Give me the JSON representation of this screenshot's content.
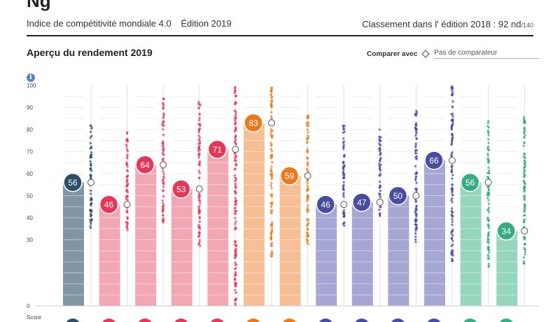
{
  "page": {
    "top_cut_text": "Ng",
    "index_name": "Indice de compétitivité mondiale 4.0",
    "edition": "Édition 2019",
    "ranking_label": "Classement dans l' édition 2018 :",
    "ranking_value": "92 nd",
    "ranking_total": "/140",
    "chart_title": "Aperçu du rendement 2019",
    "compare_label": "Comparer avec",
    "compare_placeholder": "Pas de comparateur",
    "info_icon_text": "i"
  },
  "chart_data": {
    "type": "bar",
    "title": "Aperçu du rendement 2019",
    "ylabel": "Score",
    "ylim": [
      0,
      100
    ],
    "yticks": [
      0,
      30,
      40,
      50,
      60,
      70,
      80,
      90,
      100
    ],
    "grid": true,
    "values": [
      56,
      46,
      64,
      53,
      71,
      83,
      59,
      46,
      47,
      50,
      66,
      56,
      34
    ],
    "colors": [
      "#2e4e66",
      "#e0395a",
      "#e0395a",
      "#e0395a",
      "#e0395a",
      "#ea7a22",
      "#ea7a22",
      "#4a4c9e",
      "#4a4c9e",
      "#4a4c9e",
      "#4a4c9e",
      "#3aaa82",
      "#3aaa82"
    ],
    "bar_fills": [
      "#8195a4",
      "#f2a7b5",
      "#f2a7b5",
      "#f2a7b5",
      "#f2a7b5",
      "#f6bf95",
      "#f6bf95",
      "#a5a6d3",
      "#a5a6d3",
      "#a5a6d3",
      "#a5a6d3",
      "#95d6bd",
      "#95d6bd"
    ],
    "comparison_markers": [
      56,
      46,
      64,
      53,
      71,
      83,
      59,
      46,
      47,
      50,
      66,
      56,
      34
    ],
    "distribution_ranges": [
      [
        35,
        84
      ],
      [
        34,
        80
      ],
      [
        38,
        96
      ],
      [
        27,
        93
      ],
      [
        0,
        100
      ],
      [
        22,
        100
      ],
      [
        28,
        87
      ],
      [
        35,
        82
      ],
      [
        40,
        80
      ],
      [
        29,
        91
      ],
      [
        20,
        100
      ],
      [
        17,
        84
      ],
      [
        18,
        87
      ]
    ]
  }
}
